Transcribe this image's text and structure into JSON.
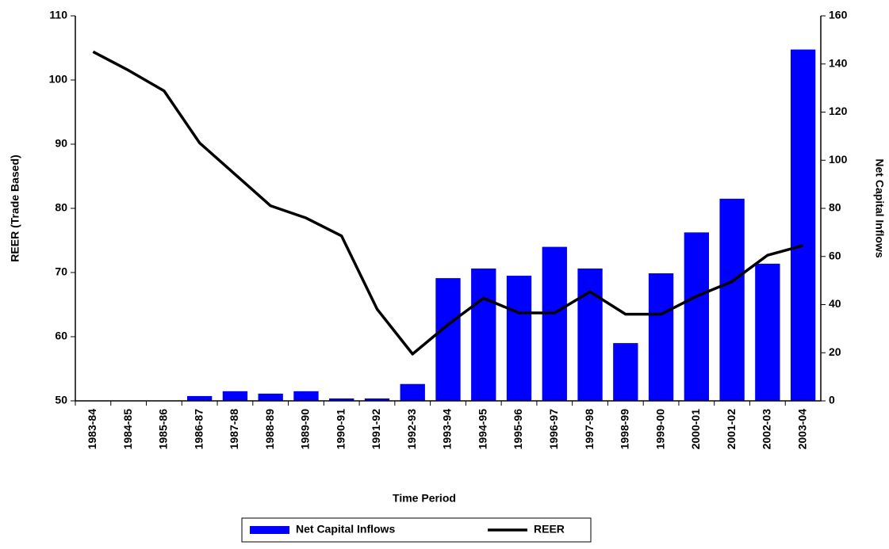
{
  "chart_data": {
    "type": "bar-line",
    "x_label": "Time Period",
    "y_label": "REER (Trade Based)",
    "y2_label": "Net Capital Inflows",
    "categories": [
      "1983-84",
      "1984-85",
      "1985-86",
      "1986-87",
      "1987-88",
      "1988-89",
      "1989-90",
      "1990-91",
      "1991-92",
      "1992-93",
      "1993-94",
      "1994-95",
      "1995-96",
      "1996-97",
      "1997-98",
      "1998-99",
      "1999-00",
      "2000-01",
      "2001-02",
      "2002-03",
      "2003-04"
    ],
    "series": [
      {
        "name": "Net Capital Inflows",
        "type": "bar",
        "axis": "y2",
        "color": "#0000ff",
        "values": [
          0,
          0,
          0,
          2,
          4,
          3,
          4,
          1,
          1,
          7,
          51,
          55,
          52,
          64,
          55,
          24,
          53,
          70,
          84,
          57,
          146
        ]
      },
      {
        "name": "REER",
        "type": "line",
        "axis": "y",
        "color": "#000000",
        "values": [
          104.4,
          101.5,
          98.3,
          90.2,
          85.3,
          80.4,
          78.5,
          75.7,
          64.3,
          57.3,
          61.9,
          66,
          63.7,
          63.7,
          67,
          63.5,
          63.5,
          66.3,
          68.6,
          72.7,
          74.2
        ]
      }
    ],
    "ylim": [
      50,
      110
    ],
    "yticks": [
      50,
      60,
      70,
      80,
      90,
      100,
      110
    ],
    "y2lim": [
      0,
      160
    ],
    "y2ticks": [
      0,
      20,
      40,
      60,
      80,
      100,
      120,
      140,
      160
    ],
    "legend": "bottom"
  }
}
